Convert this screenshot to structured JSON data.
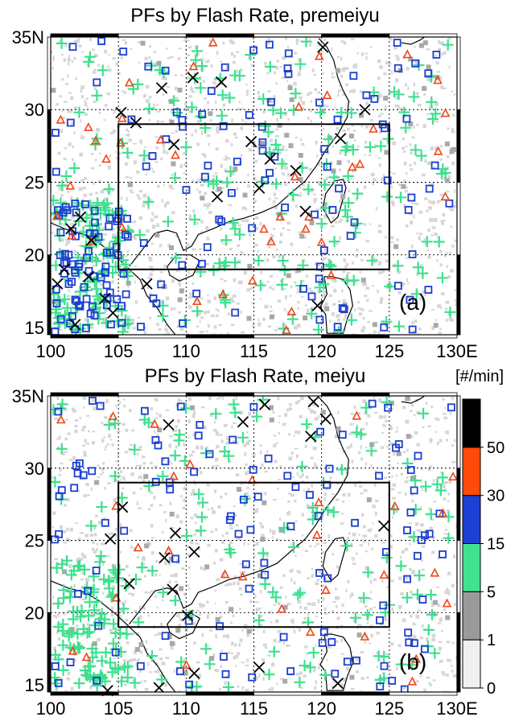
{
  "chart_data": [
    {
      "type": "scatter",
      "title": "PFs by Flash Rate, premeiyu",
      "panel_label": "(a)",
      "x_tick_labels": [
        "100",
        "105",
        "110",
        "115",
        "120",
        "125",
        "130E"
      ],
      "y_tick_labels": [
        "35N",
        "30",
        "25",
        "20",
        "15"
      ],
      "xlim": [
        100,
        130
      ],
      "ylim": [
        14.5,
        35
      ],
      "grid": true,
      "box": {
        "lon": [
          105,
          125
        ],
        "lat": [
          19,
          29
        ]
      },
      "symbols": {
        "1-5": "gray square",
        "5-15": "green plus",
        "15-30": "blue open square",
        "30-50": "red open triangle",
        "50+": "black cross"
      },
      "density": "dense",
      "black_cross_samples": [
        [
          101.5,
          21.8
        ],
        [
          102.2,
          22.6
        ],
        [
          103.0,
          21.0
        ],
        [
          101.0,
          19.0
        ],
        [
          100.5,
          18.0
        ],
        [
          102.8,
          18.5
        ],
        [
          104.0,
          17.0
        ],
        [
          104.6,
          16.0
        ],
        [
          101.8,
          15.2
        ],
        [
          106.3,
          29.1
        ],
        [
          105.2,
          29.8
        ],
        [
          108.2,
          31.5
        ],
        [
          110.5,
          32.2
        ],
        [
          112.6,
          31.9
        ],
        [
          114.8,
          27.8
        ],
        [
          116.2,
          26.6
        ],
        [
          118.1,
          25.8
        ],
        [
          112.3,
          24.0
        ],
        [
          115.4,
          24.6
        ],
        [
          118.8,
          23.0
        ],
        [
          107.1,
          18.0
        ],
        [
          109.1,
          27.6
        ],
        [
          120.1,
          34.3
        ],
        [
          121.4,
          28.0
        ],
        [
          123.2,
          30.0
        ],
        [
          119.7,
          16.5
        ]
      ]
    },
    {
      "type": "scatter",
      "title": "PFs by Flash Rate, meiyu",
      "panel_label": "(b)",
      "x_tick_labels": [
        "100",
        "105",
        "110",
        "115",
        "120",
        "125",
        "130E"
      ],
      "y_tick_labels": [
        "35N",
        "30",
        "25",
        "20",
        "15"
      ],
      "xlim": [
        100,
        130
      ],
      "ylim": [
        14.5,
        35
      ],
      "grid": true,
      "box": {
        "lon": [
          105,
          125
        ],
        "lat": [
          19,
          29
        ]
      },
      "density": "moderate",
      "black_cross_samples": [
        [
          114.2,
          33.2
        ],
        [
          115.8,
          34.4
        ],
        [
          119.2,
          32.2
        ],
        [
          119.4,
          34.6
        ],
        [
          120.3,
          33.4
        ],
        [
          108.7,
          33.0
        ],
        [
          105.3,
          27.3
        ],
        [
          104.4,
          25.1
        ],
        [
          105.8,
          22.0
        ],
        [
          108.4,
          23.8
        ],
        [
          109.2,
          25.5
        ],
        [
          110.6,
          24.2
        ],
        [
          110.1,
          19.8
        ],
        [
          109.0,
          21.6
        ],
        [
          115.4,
          16.2
        ],
        [
          121.2,
          15.1
        ],
        [
          124.6,
          26.0
        ],
        [
          104.2,
          14.6
        ],
        [
          108.0,
          14.8
        ],
        [
          110.6,
          15.8
        ]
      ]
    }
  ],
  "colorbar": {
    "unit_label": "[#/min]",
    "tick_labels": [
      "0",
      "1",
      "5",
      "15",
      "30",
      "50"
    ],
    "colors": [
      "#f0f0f0",
      "#9a9a9a",
      "#40e290",
      "#1d3fd4",
      "#ff4a0a",
      "#000000"
    ]
  },
  "colors": {
    "green": "#3fe08e",
    "blue": "#1c3ed1",
    "red": "#f0461a",
    "gray": "#a8a8a8",
    "speckle": "#d6d6d6"
  }
}
